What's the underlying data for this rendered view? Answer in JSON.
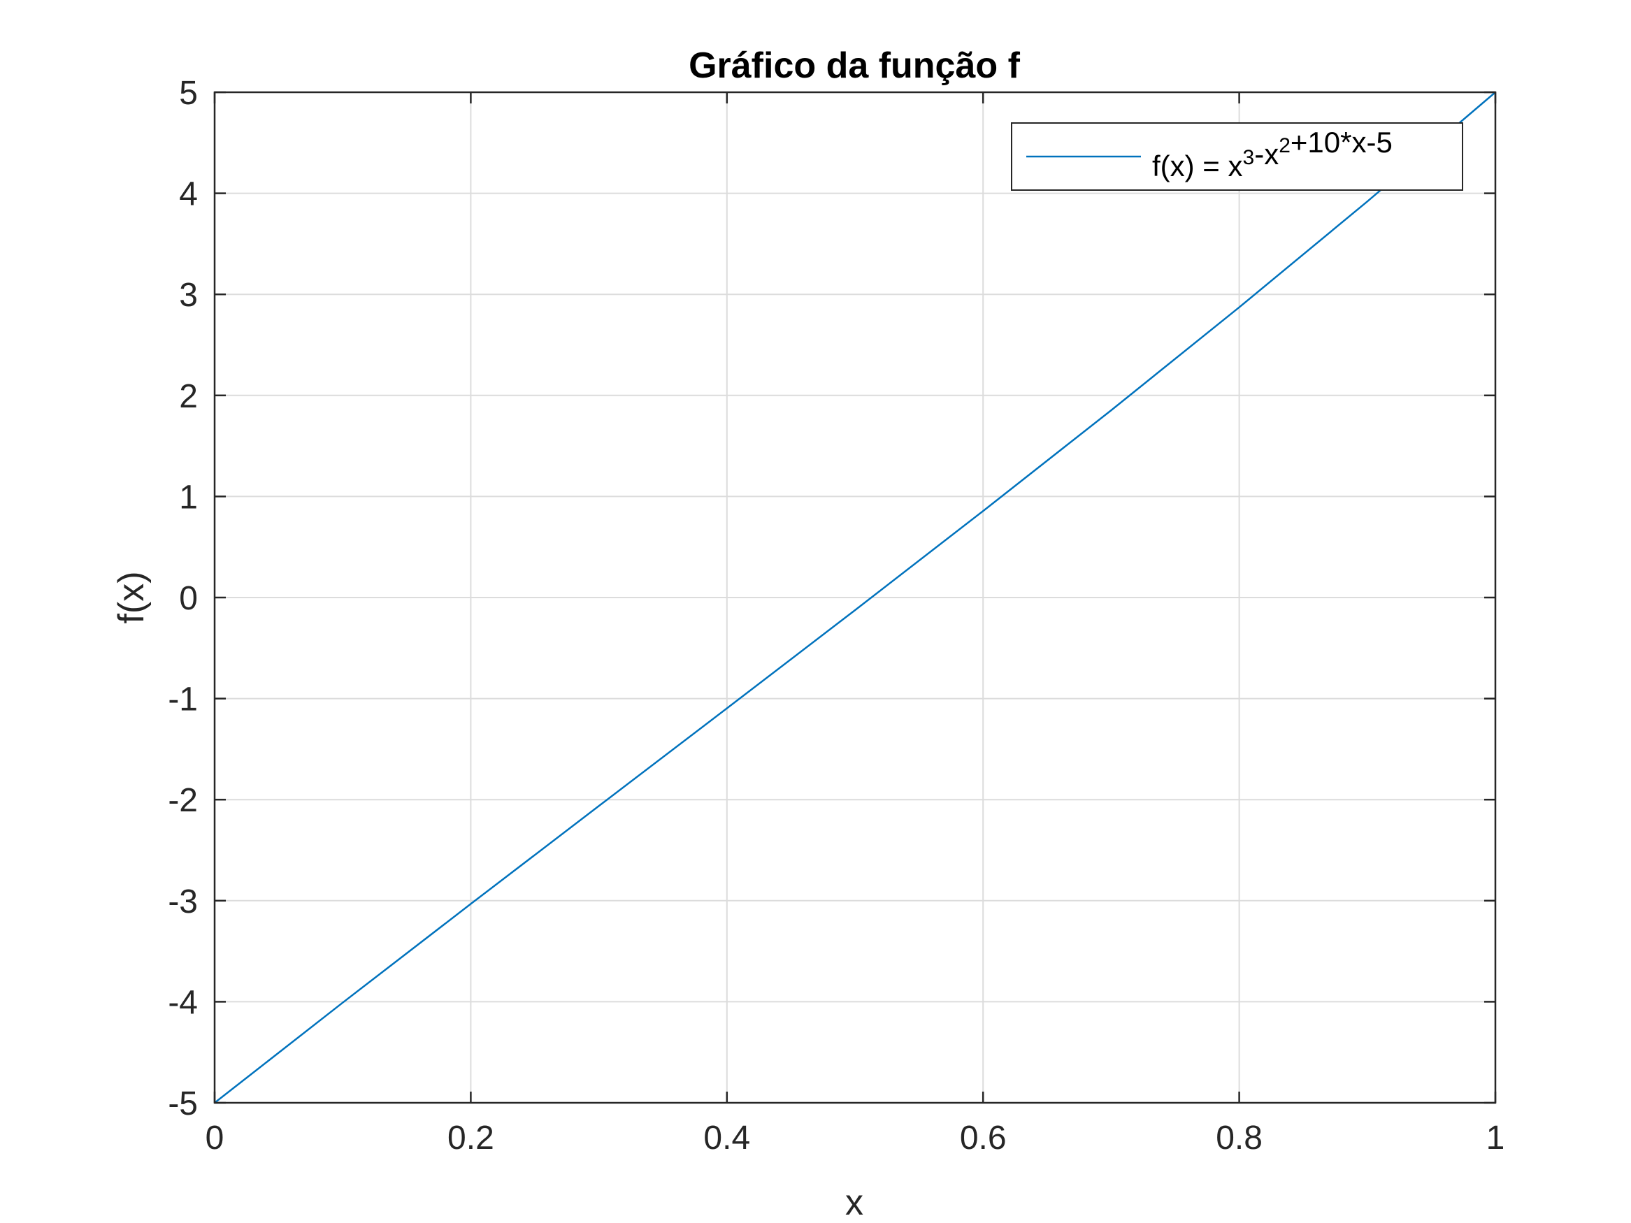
{
  "chart_data": {
    "type": "line",
    "title": "Gráfico da função f",
    "xlabel": "x",
    "ylabel": "f(x)",
    "xlim": [
      0,
      1
    ],
    "ylim": [
      -5,
      5
    ],
    "x_ticks": [
      0,
      0.2,
      0.4,
      0.6,
      0.8,
      1
    ],
    "x_tick_labels": [
      "0",
      "0.2",
      "0.4",
      "0.6",
      "0.8",
      "1"
    ],
    "y_ticks": [
      -5,
      -4,
      -3,
      -2,
      -1,
      0,
      1,
      2,
      3,
      4,
      5
    ],
    "y_tick_labels": [
      "-5",
      "-4",
      "-3",
      "-2",
      "-1",
      "0",
      "1",
      "2",
      "3",
      "4",
      "5"
    ],
    "grid": true,
    "legend_position": "top-right",
    "series": [
      {
        "name": "f(x) = x^3-x^2+10*x-5",
        "color": "#0072BD",
        "x": [
          0,
          0.1,
          0.2,
          0.3,
          0.4,
          0.5,
          0.6,
          0.7,
          0.8,
          0.9,
          1.0
        ],
        "y": [
          -5,
          -4.009,
          -3.032,
          -2.063,
          -1.096,
          -0.125,
          0.856,
          1.853,
          2.872,
          3.919,
          5
        ]
      }
    ]
  },
  "legend": {
    "parts": [
      {
        "text": "f(x) = x",
        "sup": false
      },
      {
        "text": "3",
        "sup": true
      },
      {
        "text": "-x",
        "sup": false
      },
      {
        "text": "2",
        "sup": true
      },
      {
        "text": "+10*x-5",
        "sup": false
      }
    ]
  }
}
